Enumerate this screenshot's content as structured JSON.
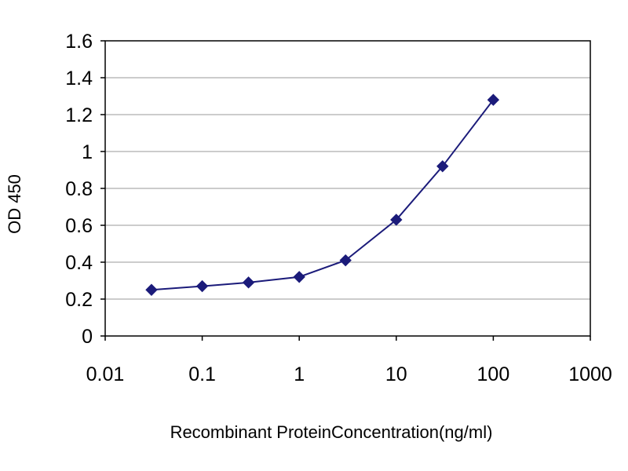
{
  "chart_data": {
    "type": "line",
    "x_scale": "log",
    "xlabel": "Recombinant ProteinConcentration(ng/ml)",
    "ylabel": "OD 450",
    "xlim": [
      0.01,
      1000
    ],
    "ylim": [
      0,
      1.6
    ],
    "x_ticks": [
      "0.01",
      "0.1",
      "1",
      "10",
      "100",
      "1000"
    ],
    "y_ticks": [
      "0",
      "0.2",
      "0.4",
      "0.6",
      "0.8",
      "1",
      "1.2",
      "1.4",
      "1.6"
    ],
    "grid": "horizontal",
    "legend": "none",
    "series": [
      {
        "color": "#1b1b7a",
        "x": [
          0.03,
          0.1,
          0.3,
          1,
          3,
          10,
          30,
          100
        ],
        "y": [
          0.25,
          0.27,
          0.29,
          0.32,
          0.41,
          0.63,
          0.92,
          1.28
        ]
      }
    ]
  }
}
